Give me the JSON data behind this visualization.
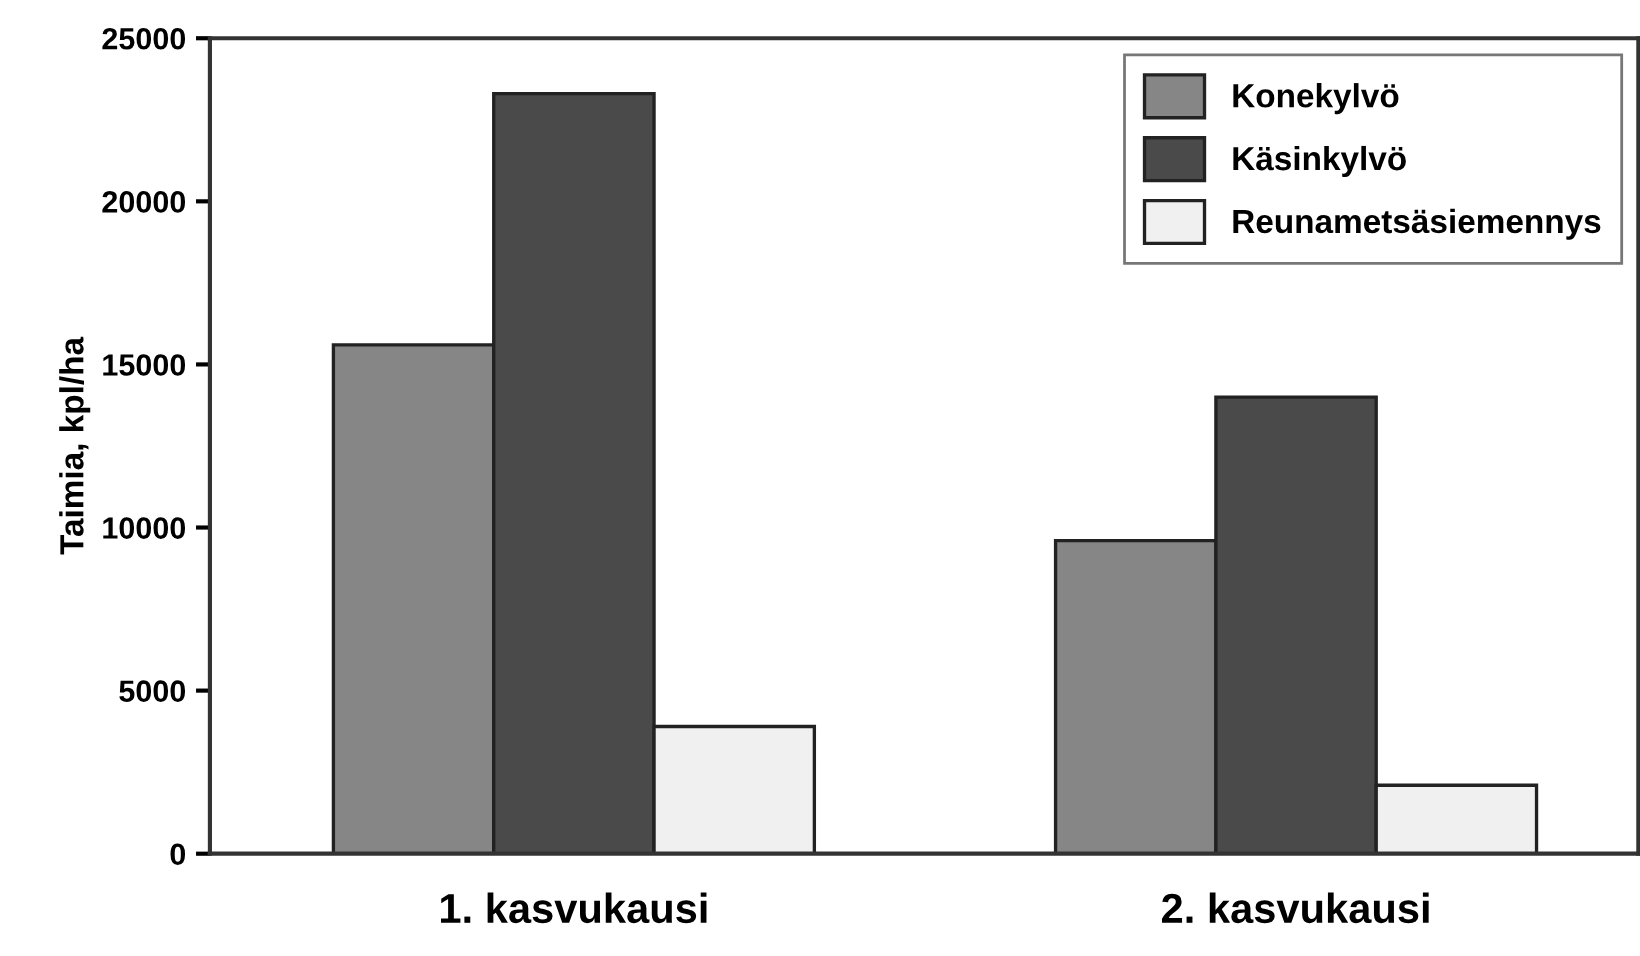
{
  "chart_data": {
    "type": "bar",
    "ylabel": "Taimia, kpl/ha",
    "categories": [
      "1. kasvukausi",
      "2. kasvukausi"
    ],
    "series": [
      {
        "name": "Konekylvö",
        "color": "#868686",
        "values": [
          15600,
          9600
        ]
      },
      {
        "name": "Käsinkylvö",
        "color": "#4a4a4a",
        "values": [
          23300,
          14000
        ]
      },
      {
        "name": "Reunametsäsiemennys",
        "color": "#f0f0f0",
        "values": [
          3900,
          2100
        ]
      }
    ],
    "ylim": [
      0,
      25000
    ],
    "yticks": [
      0,
      5000,
      10000,
      15000,
      20000,
      25000
    ],
    "grid": false,
    "legend": "top right"
  }
}
